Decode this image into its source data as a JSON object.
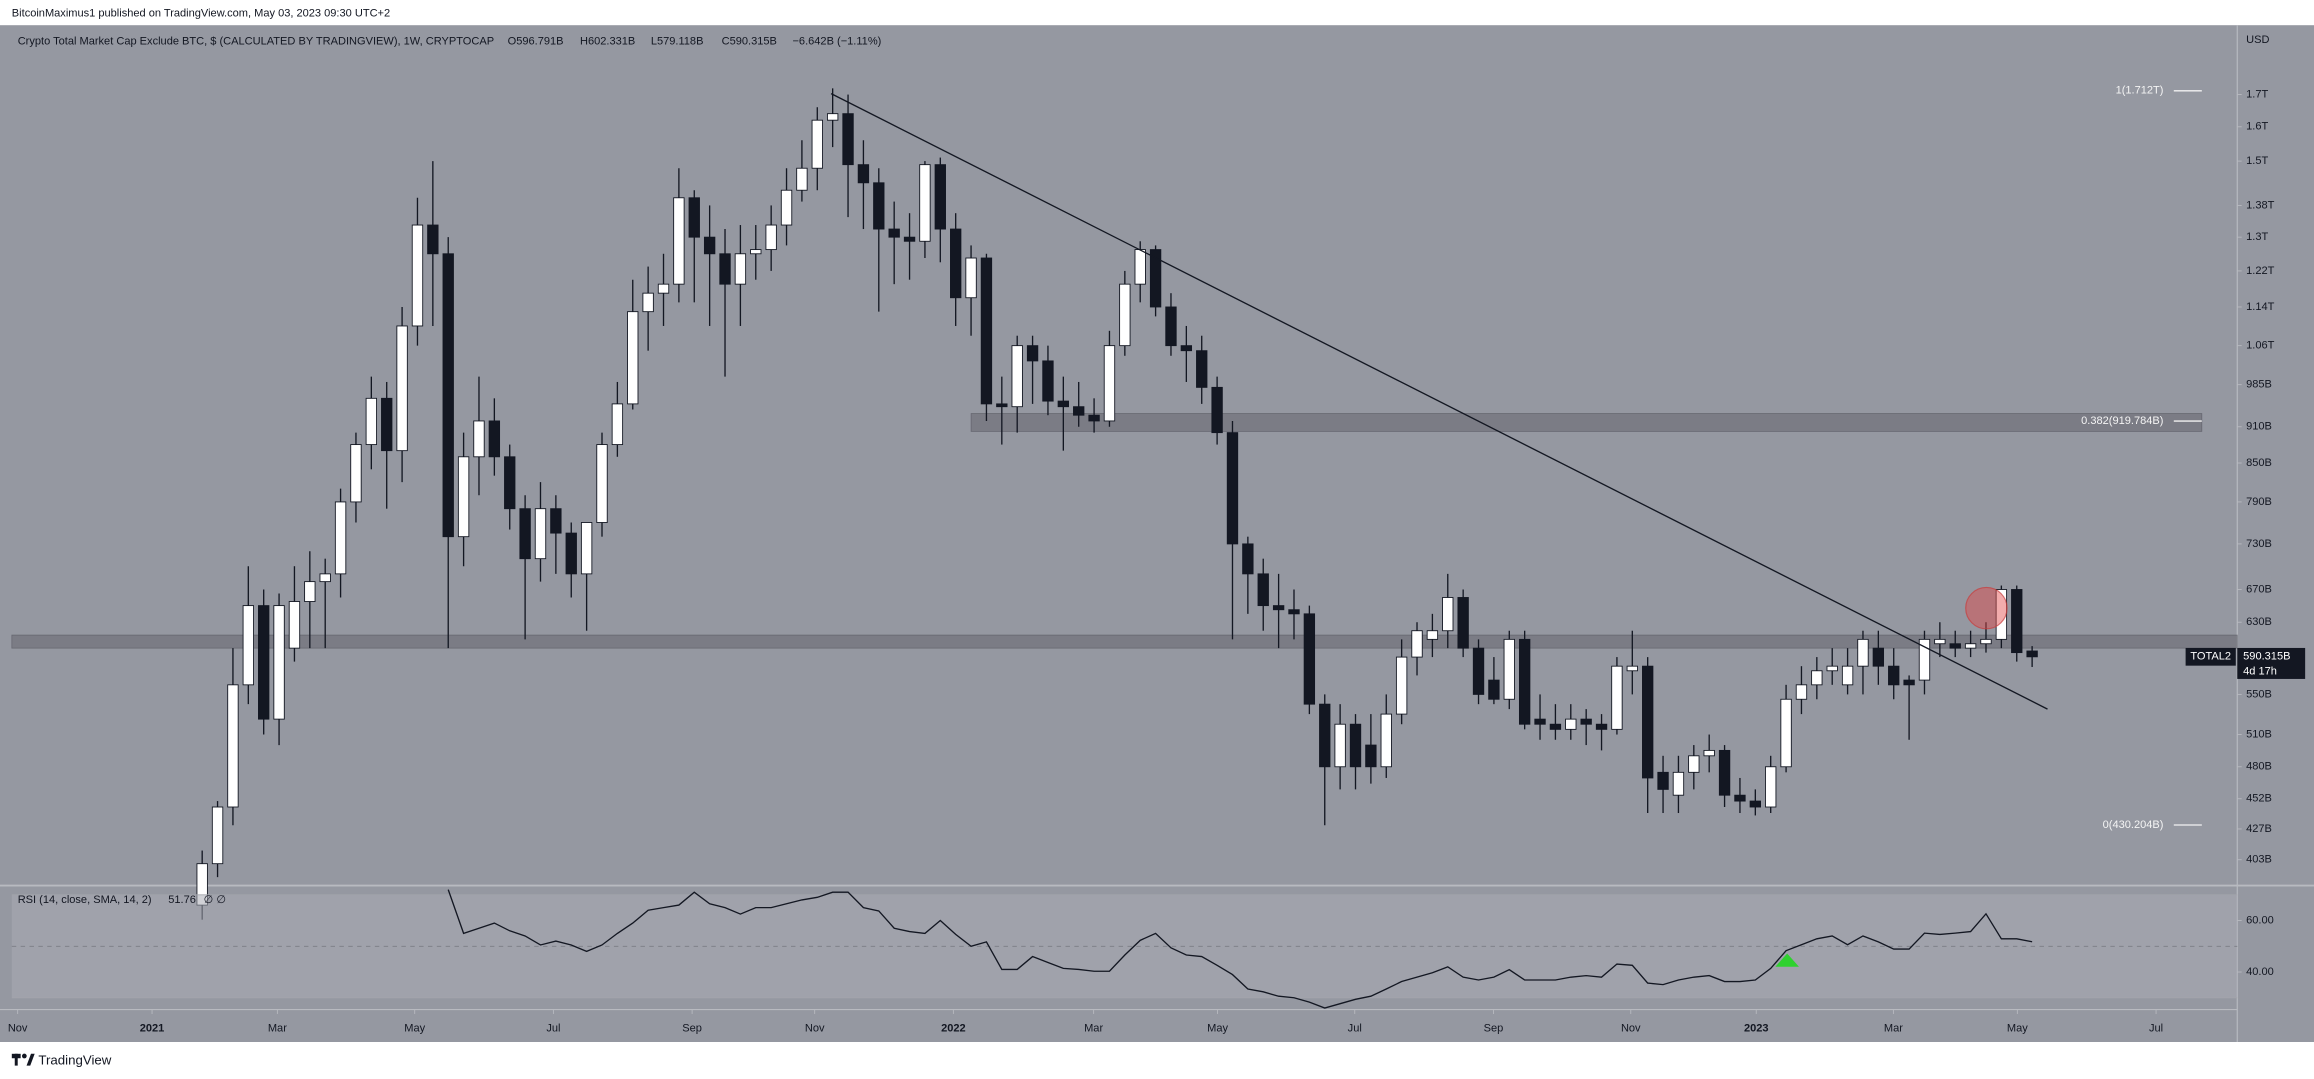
{
  "page": {
    "publisher_line": "BitcoinMaximus1 published on TradingView.com, May 03, 2023 09:30 UTC+2",
    "footer": "TradingView"
  },
  "chart_data": {
    "type": "candlestick",
    "title": "Crypto Total Market Cap Exclude BTC, $ (CALCULATED BY TRADINGVIEW), 1W, CRYPTOCAP",
    "ohlc_labels": [
      "O596.791B",
      "H602.331B",
      "L579.118B",
      "C590.315B",
      "−6.642B (−1.11%)"
    ],
    "currency": "USD",
    "symbol": "TOTAL2",
    "countdown": "4d 17h",
    "last_price": {
      "value": 590.315,
      "label": "590.315B"
    },
    "log_scale": true,
    "up_color": "#ffffff",
    "down_color": "#131722",
    "candles": {
      "open": [
        370,
        400,
        445,
        560,
        650,
        525,
        600,
        655,
        680,
        690,
        790,
        880,
        960,
        870,
        1100,
        1330,
        1260,
        740,
        860,
        920,
        860,
        780,
        710,
        780,
        745,
        690,
        760,
        880,
        950,
        1130,
        1170,
        1190,
        1400,
        1300,
        1260,
        1190,
        1260,
        1270,
        1330,
        1420,
        1480,
        1620,
        1640,
        1490,
        1440,
        1320,
        1300,
        1290,
        1490,
        1320,
        1160,
        1250,
        950,
        945,
        1060,
        1030,
        955,
        945,
        930,
        920,
        1060,
        1190,
        1270,
        1140,
        1060,
        1050,
        980,
        900,
        730,
        690,
        650,
        645,
        640,
        540,
        480,
        520,
        500,
        480,
        530,
        590,
        610,
        620,
        660,
        600,
        565,
        545,
        610,
        525,
        520,
        515,
        525,
        520,
        515,
        575,
        580,
        475,
        455,
        475,
        490,
        495,
        455,
        450,
        445,
        480,
        545,
        560,
        575,
        560,
        580,
        600,
        580,
        565,
        565,
        605,
        605,
        600,
        605,
        610,
        670,
        596.791
      ],
      "high": [
        410,
        450,
        600,
        700,
        670,
        665,
        700,
        720,
        710,
        810,
        900,
        1000,
        990,
        1140,
        1400,
        1500,
        1300,
        900,
        1000,
        960,
        880,
        800,
        820,
        800,
        760,
        760,
        900,
        990,
        1200,
        1230,
        1260,
        1480,
        1420,
        1380,
        1320,
        1330,
        1330,
        1380,
        1480,
        1560,
        1660,
        1720,
        1700,
        1560,
        1480,
        1390,
        1360,
        1500,
        1510,
        1360,
        1280,
        1260,
        1000,
        1080,
        1080,
        1060,
        1000,
        990,
        960,
        1090,
        1220,
        1290,
        1280,
        1170,
        1100,
        1080,
        1000,
        920,
        740,
        710,
        690,
        670,
        650,
        550,
        540,
        530,
        530,
        550,
        610,
        630,
        640,
        690,
        670,
        610,
        590,
        620,
        620,
        550,
        540,
        540,
        535,
        530,
        590,
        620,
        590,
        490,
        490,
        500,
        510,
        500,
        470,
        460,
        490,
        560,
        580,
        590,
        600,
        600,
        620,
        620,
        600,
        570,
        620,
        630,
        620,
        620,
        630,
        675,
        675,
        602.331
      ],
      "low": [
        360,
        390,
        430,
        540,
        510,
        500,
        585,
        600,
        600,
        660,
        760,
        840,
        780,
        820,
        1060,
        1100,
        600,
        700,
        800,
        830,
        750,
        610,
        680,
        690,
        660,
        620,
        740,
        860,
        940,
        1050,
        1100,
        1150,
        1150,
        1100,
        1000,
        1100,
        1200,
        1220,
        1280,
        1390,
        1420,
        1540,
        1350,
        1320,
        1130,
        1190,
        1200,
        1250,
        1240,
        1100,
        1080,
        920,
        880,
        900,
        950,
        930,
        870,
        910,
        900,
        910,
        1040,
        1150,
        1120,
        1040,
        990,
        950,
        880,
        610,
        640,
        620,
        600,
        610,
        530,
        430,
        460,
        460,
        465,
        470,
        520,
        570,
        590,
        600,
        590,
        540,
        540,
        535,
        515,
        505,
        505,
        505,
        500,
        495,
        510,
        550,
        440,
        440,
        440,
        460,
        475,
        445,
        440,
        438,
        440,
        475,
        530,
        545,
        560,
        550,
        550,
        560,
        545,
        505,
        550,
        590,
        590,
        590,
        595,
        600,
        585,
        579.118
      ],
      "close": [
        400,
        445,
        560,
        650,
        525,
        650,
        655,
        680,
        690,
        790,
        880,
        960,
        870,
        1100,
        1330,
        1260,
        740,
        860,
        920,
        860,
        780,
        710,
        780,
        745,
        690,
        760,
        880,
        950,
        1130,
        1170,
        1190,
        1400,
        1300,
        1260,
        1190,
        1260,
        1270,
        1330,
        1420,
        1480,
        1620,
        1640,
        1490,
        1440,
        1320,
        1300,
        1290,
        1490,
        1320,
        1160,
        1250,
        950,
        945,
        1060,
        1030,
        955,
        945,
        930,
        920,
        1060,
        1190,
        1270,
        1140,
        1060,
        1050,
        980,
        900,
        730,
        690,
        650,
        645,
        640,
        540,
        480,
        520,
        480,
        480,
        530,
        590,
        620,
        620,
        660,
        600,
        550,
        545,
        610,
        520,
        520,
        515,
        525,
        520,
        515,
        580,
        580,
        470,
        460,
        475,
        490,
        495,
        455,
        450,
        445,
        480,
        545,
        560,
        575,
        580,
        580,
        610,
        580,
        560,
        560,
        610,
        610,
        600,
        605,
        610,
        670,
        595,
        590.315
      ]
    },
    "xlim": [
      -12.38,
      132.34
    ],
    "xticks": [
      {
        "value": -12.0,
        "label": "Nov"
      },
      {
        "value": -3.26,
        "label": "2021"
      },
      {
        "value": 4.89,
        "label": "Mar"
      },
      {
        "value": 13.82,
        "label": "May"
      },
      {
        "value": 22.84,
        "label": "Jul"
      },
      {
        "value": 31.86,
        "label": "Sep"
      },
      {
        "value": 39.83,
        "label": "Nov"
      },
      {
        "value": 48.85,
        "label": "2022"
      },
      {
        "value": 57.97,
        "label": "Mar"
      },
      {
        "value": 66.03,
        "label": "May"
      },
      {
        "value": 74.95,
        "label": "Jul"
      },
      {
        "value": 83.97,
        "label": "Sep"
      },
      {
        "value": 92.9,
        "label": "Nov"
      },
      {
        "value": 101.06,
        "label": "2023"
      },
      {
        "value": 109.98,
        "label": "Mar"
      },
      {
        "value": 118.04,
        "label": "May"
      },
      {
        "value": 127.06,
        "label": "Jul"
      }
    ],
    "ylim": [
      386,
      1937
    ],
    "yticks": [
      {
        "value": 403,
        "label": "403B"
      },
      {
        "value": 427,
        "label": "427B"
      },
      {
        "value": 452,
        "label": "452B"
      },
      {
        "value": 480,
        "label": "480B"
      },
      {
        "value": 510,
        "label": "510B"
      },
      {
        "value": 550,
        "label": "550B"
      },
      {
        "value": 630,
        "label": "630B"
      },
      {
        "value": 670,
        "label": "670B"
      },
      {
        "value": 730,
        "label": "730B"
      },
      {
        "value": 790,
        "label": "790B"
      },
      {
        "value": 850,
        "label": "850B"
      },
      {
        "value": 910,
        "label": "910B"
      },
      {
        "value": 985,
        "label": "985B"
      },
      {
        "value": 1060,
        "label": "1.06T"
      },
      {
        "value": 1140,
        "label": "1.14T"
      },
      {
        "value": 1220,
        "label": "1.22T"
      },
      {
        "value": 1300,
        "label": "1.3T"
      },
      {
        "value": 1380,
        "label": "1.38T"
      },
      {
        "value": 1500,
        "label": "1.5T"
      },
      {
        "value": 1600,
        "label": "1.6T"
      },
      {
        "value": 1700,
        "label": "1.7T"
      }
    ],
    "fib_levels": [
      {
        "value": 1712,
        "label": "1(1.712T)"
      },
      {
        "value": 919.784,
        "label": "0.382(919.784B)"
      },
      {
        "value": 430.204,
        "label": "0(430.204B)"
      }
    ],
    "zones": [
      [
        902,
        933
      ],
      [
        600,
        615
      ]
    ],
    "trendline": {
      "x": [
        40.9,
        120
      ],
      "values": [
        1703,
        535
      ]
    },
    "rsi": {
      "name": "RSI (14, close, SMA, 14, 2)",
      "value_label": "51.76",
      "extra": "∅ ∅",
      "ylim": [
        26,
        73
      ],
      "yticks": [
        {
          "value": 60,
          "label": "60.00"
        },
        {
          "value": 40,
          "label": "40.00"
        }
      ],
      "band": [
        30,
        70
      ],
      "midline": 50,
      "color": "#131722",
      "values": [
        null,
        null,
        null,
        null,
        null,
        null,
        null,
        null,
        null,
        null,
        null,
        null,
        null,
        null,
        null,
        null,
        72,
        55,
        57,
        59,
        56,
        54,
        50.5,
        52,
        50.5,
        48,
        50.5,
        55,
        59,
        64,
        65,
        66,
        71,
        66.5,
        65,
        62.5,
        65,
        65,
        66.5,
        68,
        69,
        71,
        71,
        65,
        63.7,
        57,
        55.7,
        55,
        60,
        54.6,
        50,
        51.7,
        41,
        41,
        46,
        43.7,
        41.4,
        41,
        40.3,
        40.3,
        46.6,
        52.3,
        55,
        49.4,
        46.6,
        46,
        42.6,
        39,
        33.4,
        32.3,
        30.6,
        30,
        28.3,
        26,
        27.7,
        29.4,
        30.6,
        33.4,
        36.3,
        38,
        39.7,
        42,
        38,
        36.9,
        38,
        40.9,
        36.9,
        36.9,
        36.9,
        38,
        38.6,
        38,
        43.1,
        42.6,
        35.7,
        35.1,
        36.9,
        38,
        38.6,
        36.3,
        36.3,
        36.9,
        41.4,
        48.3,
        50.6,
        52.9,
        54,
        50.6,
        54,
        51.7,
        48.9,
        48.9,
        55.1,
        54.6,
        55.1,
        55.7,
        62.6,
        52.9,
        52.9,
        51.76
      ]
    }
  }
}
